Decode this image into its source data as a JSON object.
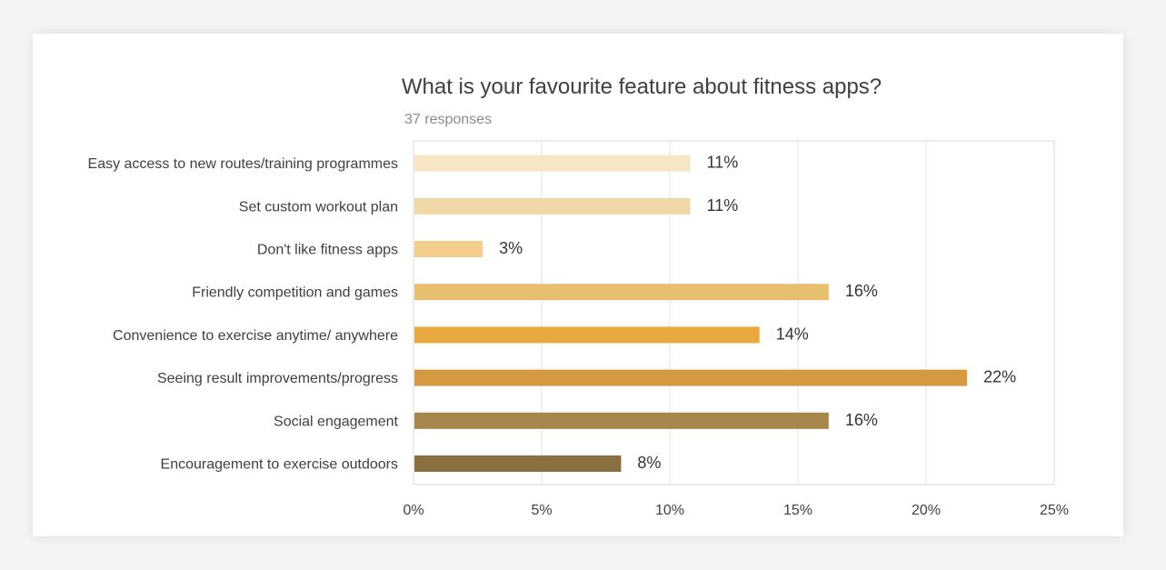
{
  "chart_data": {
    "type": "bar",
    "orientation": "horizontal",
    "title": "What is your favourite feature about fitness apps?",
    "subtitle": "37 responses",
    "categories": [
      "Easy access to new routes/training programmes",
      "Set custom workout plan",
      "Don't like fitness apps",
      "Friendly competition and games",
      "Convenience to exercise anytime/ anywhere",
      "Seeing result improvements/progress",
      "Social engagement",
      "Encouragement to exercise outdoors"
    ],
    "values": [
      10.8,
      10.8,
      2.7,
      16.2,
      13.5,
      21.6,
      16.2,
      8.1
    ],
    "value_labels": [
      "11%",
      "11%",
      "3%",
      "16%",
      "14%",
      "22%",
      "16%",
      "8%"
    ],
    "colors": [
      "#f7e6c4",
      "#f0d9a8",
      "#f2cd8b",
      "#e6c06e",
      "#e8a93e",
      "#d59a3f",
      "#a8874d",
      "#8a6f40"
    ],
    "xlim": [
      0,
      25
    ],
    "xticks": [
      0,
      5,
      10,
      15,
      20,
      25
    ],
    "xtick_labels": [
      "0%",
      "5%",
      "10%",
      "15%",
      "20%",
      "25%"
    ],
    "grid": true,
    "legend": "none"
  }
}
